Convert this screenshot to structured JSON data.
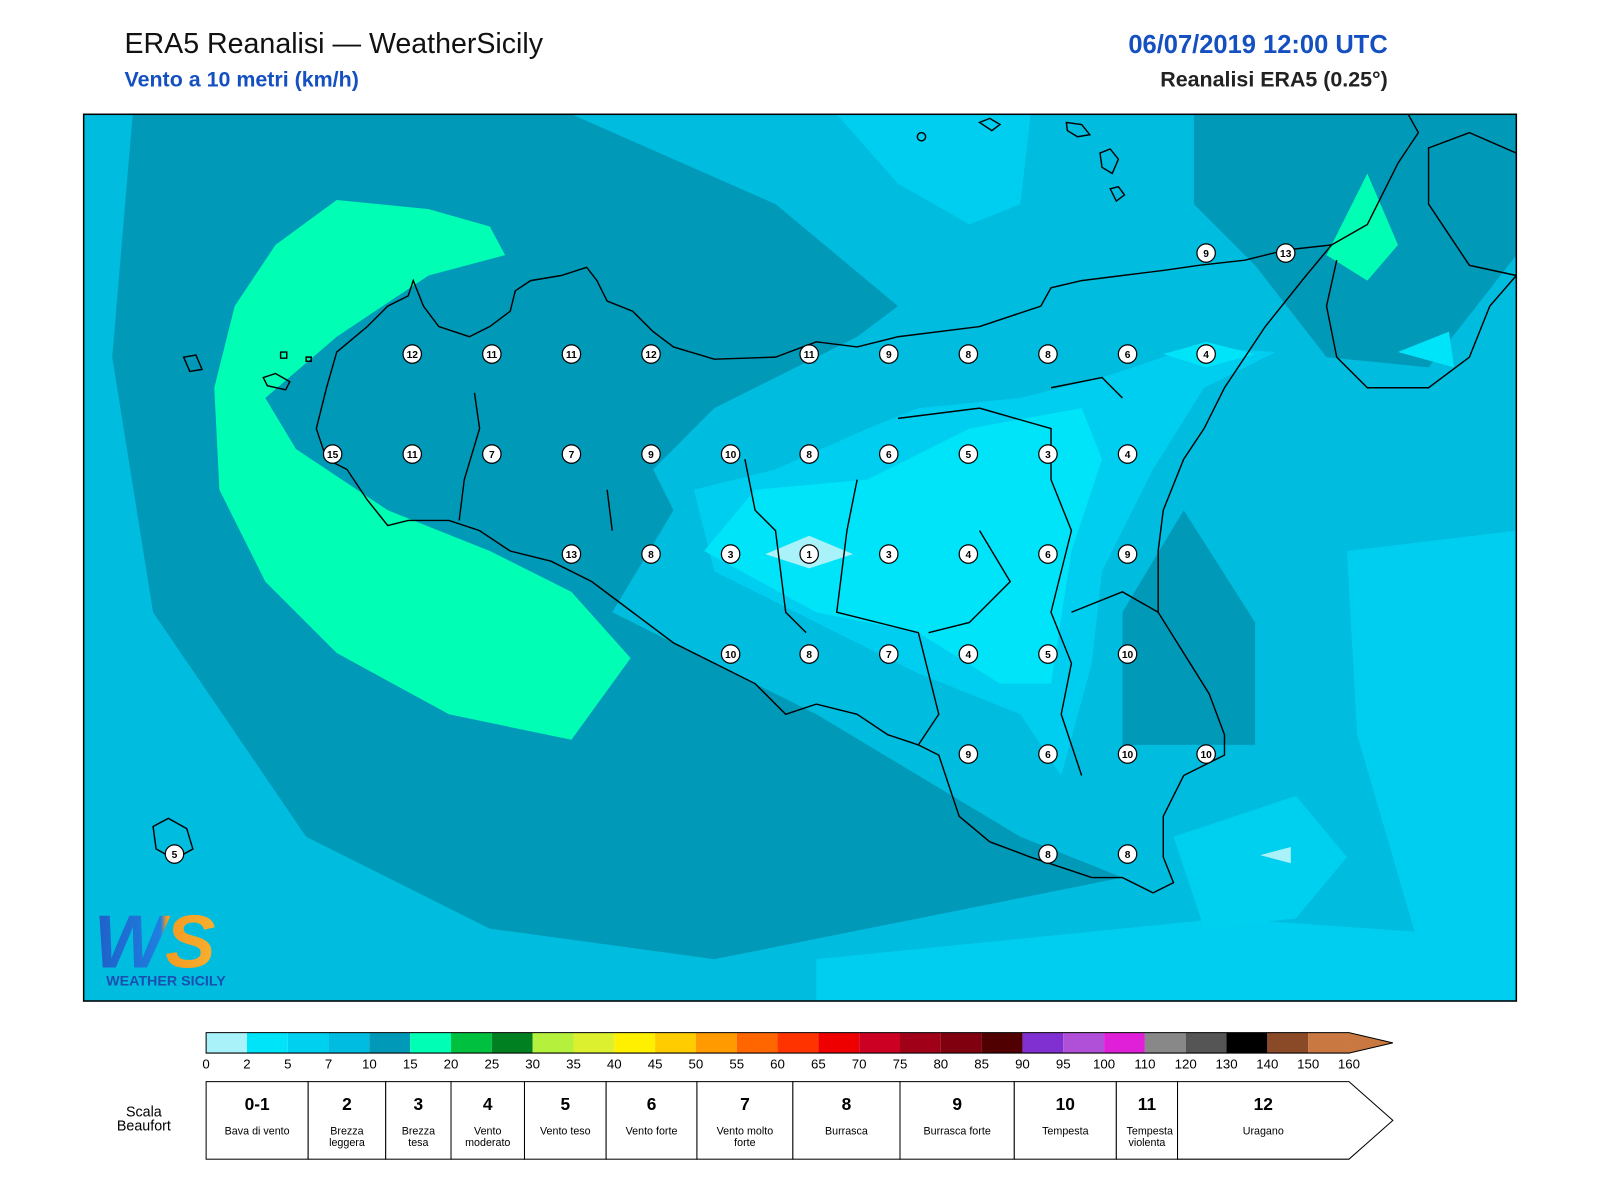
{
  "header": {
    "title": "ERA5 Reanalisi — WeatherSicily",
    "subtitle": "Vento a 10 metri (km/h)",
    "date": "06/07/2019 12:00 UTC",
    "source": "Reanalisi ERA5 (0.25°)"
  },
  "stations": [
    9,
    13,
    12,
    11,
    11,
    12,
    11,
    9,
    8,
    8,
    6,
    4,
    15,
    11,
    7,
    7,
    9,
    10,
    8,
    6,
    5,
    3,
    4,
    13,
    8,
    3,
    1,
    3,
    4,
    6,
    9,
    10,
    8,
    7,
    4,
    5,
    10,
    9,
    6,
    10,
    10,
    5,
    8,
    8
  ],
  "logo": {
    "mark": "WS",
    "name": "WEATHER SICILY"
  },
  "colorbar": {
    "ticks": [
      0,
      2,
      5,
      7,
      10,
      15,
      20,
      25,
      30,
      35,
      40,
      45,
      50,
      55,
      60,
      65,
      70,
      75,
      80,
      85,
      90,
      95,
      100,
      110,
      120,
      130,
      140,
      150,
      160
    ],
    "colors": [
      "#aaf2fa",
      "#00e4fa",
      "#00d0f0",
      "#00bce0",
      "#0099b8",
      "#00ffb4",
      "#00c040",
      "#008020",
      "#b4f03c",
      "#dcf030",
      "#fff000",
      "#ffcc00",
      "#ff9a00",
      "#ff6600",
      "#ff3300",
      "#ee0000",
      "#cc0022",
      "#a00018",
      "#800010",
      "#500000",
      "#8030d0",
      "#b050d8",
      "#e020d8",
      "#888888",
      "#555555",
      "#000000",
      "#8a4a28",
      "#c87840"
    ]
  },
  "beaufort": {
    "label": "Scala Beaufort",
    "levels": [
      {
        "number": "0-1",
        "name": "Bava di vento"
      },
      {
        "number": "2",
        "name": "Brezza leggera"
      },
      {
        "number": "3",
        "name": "Brezza tesa"
      },
      {
        "number": "4",
        "name": "Vento moderato"
      },
      {
        "number": "5",
        "name": "Vento teso"
      },
      {
        "number": "6",
        "name": "Vento forte"
      },
      {
        "number": "7",
        "name": "Vento molto forte"
      },
      {
        "number": "8",
        "name": "Burrasca"
      },
      {
        "number": "9",
        "name": "Burrasca forte"
      },
      {
        "number": "10",
        "name": "Tempesta"
      },
      {
        "number": "11",
        "name": "Tempesta violenta"
      },
      {
        "number": "12",
        "name": "Uragano"
      }
    ]
  }
}
